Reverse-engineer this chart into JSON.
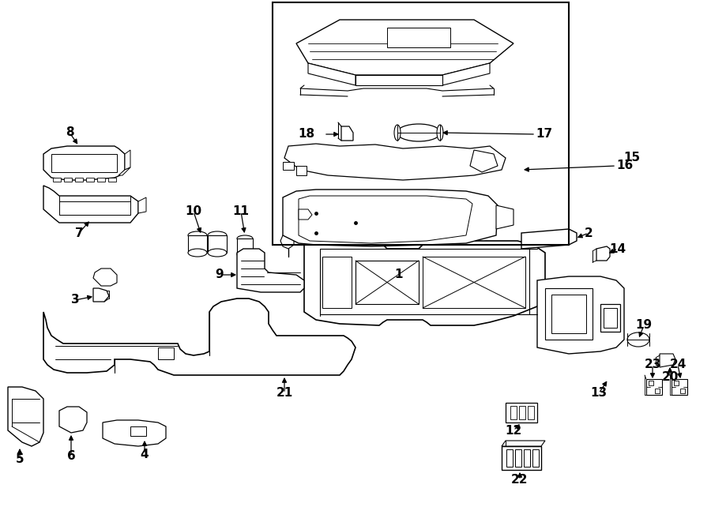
{
  "bg_color": "#ffffff",
  "fig_width": 9.0,
  "fig_height": 6.61,
  "dpi": 100
}
